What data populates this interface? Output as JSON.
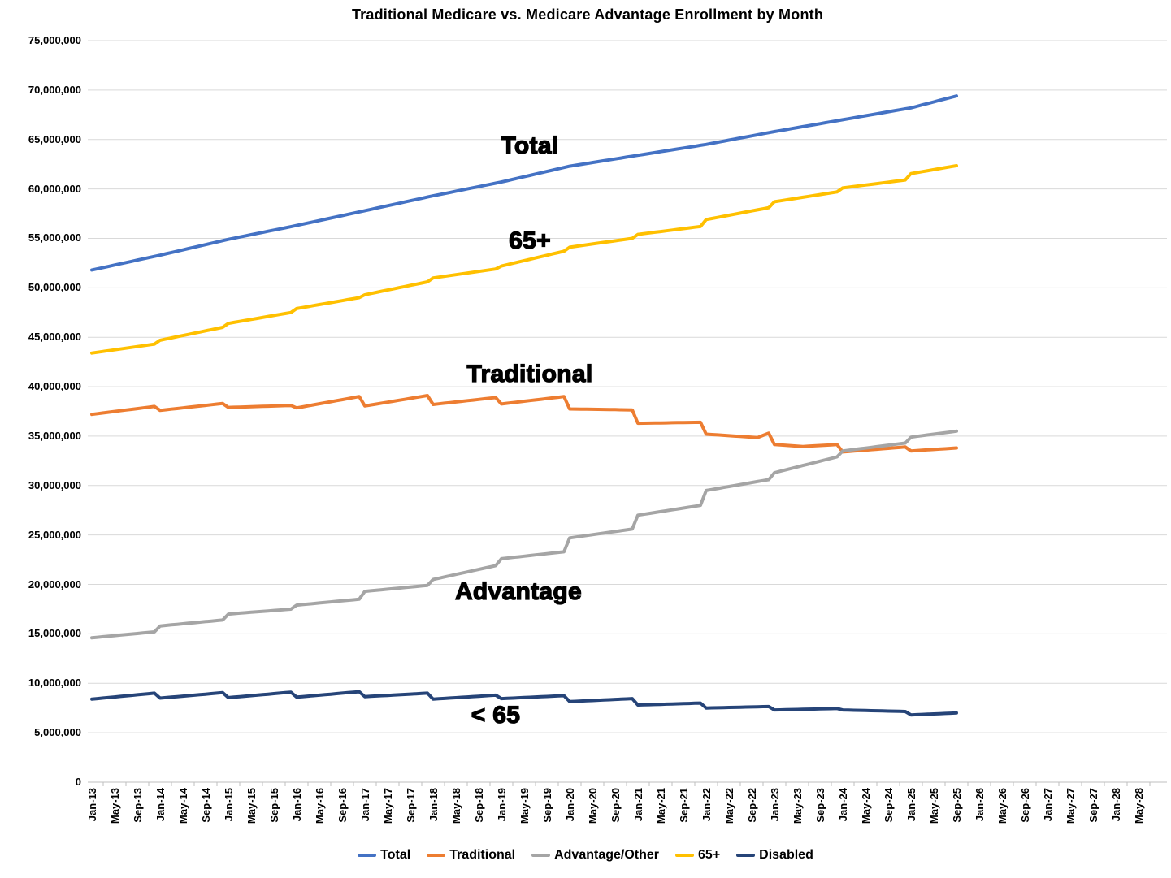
{
  "title": "Traditional Medicare vs. Medicare Advantage Enrollment by Month",
  "chart_data": {
    "type": "line",
    "title": "Traditional Medicare vs. Medicare Advantage Enrollment by Month",
    "xlabel": "",
    "ylabel": "",
    "x_unit": "month",
    "grid": "horizontal",
    "legend_position": "bottom",
    "ylim": [
      0,
      75000000
    ],
    "y_tick_interval": 5000000,
    "y_tick_labels": [
      "0",
      "5,000,000",
      "10,000,000",
      "15,000,000",
      "20,000,000",
      "25,000,000",
      "30,000,000",
      "35,000,000",
      "40,000,000",
      "45,000,000",
      "50,000,000",
      "55,000,000",
      "60,000,000",
      "65,000,000",
      "70,000,000",
      "75,000,000"
    ],
    "x_tick_labels": [
      "Jan-13",
      "May-13",
      "Sep-13",
      "Jan-14",
      "May-14",
      "Sep-14",
      "Jan-15",
      "May-15",
      "Sep-15",
      "Jan-16",
      "May-16",
      "Sep-16",
      "Jan-17",
      "May-17",
      "Sep-17",
      "Jan-18",
      "May-18",
      "Sep-18",
      "Jan-19",
      "May-19",
      "Sep-19",
      "Jan-20",
      "May-20",
      "Sep-20",
      "Jan-21",
      "May-21",
      "Sep-21",
      "Jan-22",
      "May-22",
      "Sep-22",
      "Jan-23",
      "May-23",
      "Sep-23",
      "Jan-24",
      "May-24",
      "Sep-24",
      "Jan-25",
      "May-25",
      "Sep-25",
      "Jan-26",
      "May-26",
      "Sep-26",
      "Jan-27",
      "May-27",
      "Sep-27",
      "Jan-28",
      "May-28"
    ],
    "x_axis_extends_to": "May-28",
    "data_start": "Jan-13",
    "data_end": "Sep-25",
    "interpolation": "monthly linear between anchor points; January steps reflect annual enrollment jumps",
    "values_unit": "enrollees (anchors in millions)",
    "series": [
      {
        "name": "Total",
        "color": "#4472C4",
        "anchors_millions": [
          [
            "Jan-13",
            51.8
          ],
          [
            "Jan-14",
            53.3
          ],
          [
            "Jan-15",
            54.9
          ],
          [
            "Jan-16",
            56.3
          ],
          [
            "Jan-17",
            57.8
          ],
          [
            "Jan-18",
            59.3
          ],
          [
            "Jan-19",
            60.7
          ],
          [
            "Jan-20",
            62.3
          ],
          [
            "Jan-21",
            63.4
          ],
          [
            "Jan-22",
            64.5
          ],
          [
            "Jan-23",
            65.8
          ],
          [
            "Jan-24",
            67.0
          ],
          [
            "Jan-25",
            68.2
          ],
          [
            "Sep-25",
            69.4
          ]
        ]
      },
      {
        "name": "Traditional",
        "color": "#ED7D31",
        "anchors_millions": [
          [
            "Jan-13",
            37.2
          ],
          [
            "Dec-13",
            38.0
          ],
          [
            "Jan-14",
            37.6
          ],
          [
            "Dec-14",
            38.3
          ],
          [
            "Jan-15",
            37.9
          ],
          [
            "Dec-15",
            38.1
          ],
          [
            "Jan-16",
            37.85
          ],
          [
            "Dec-16",
            39.0
          ],
          [
            "Jan-17",
            38.05
          ],
          [
            "Dec-17",
            39.1
          ],
          [
            "Jan-18",
            38.2
          ],
          [
            "Dec-18",
            38.9
          ],
          [
            "Jan-19",
            38.25
          ],
          [
            "Dec-19",
            39.0
          ],
          [
            "Jan-20",
            37.75
          ],
          [
            "Dec-20",
            37.65
          ],
          [
            "Jan-21",
            36.3
          ],
          [
            "Dec-21",
            36.4
          ],
          [
            "Jan-22",
            35.2
          ],
          [
            "Oct-22",
            34.85
          ],
          [
            "Dec-22",
            35.3
          ],
          [
            "Jan-23",
            34.15
          ],
          [
            "Jun-23",
            33.95
          ],
          [
            "Dec-23",
            34.15
          ],
          [
            "Jan-24",
            33.4
          ],
          [
            "Dec-24",
            33.9
          ],
          [
            "Jan-25",
            33.5
          ],
          [
            "Sep-25",
            33.8
          ]
        ]
      },
      {
        "name": "Advantage/Other",
        "color": "#A5A5A5",
        "anchors_millions": [
          [
            "Jan-13",
            14.6
          ],
          [
            "Dec-13",
            15.2
          ],
          [
            "Jan-14",
            15.8
          ],
          [
            "Dec-14",
            16.4
          ],
          [
            "Jan-15",
            17.0
          ],
          [
            "Dec-15",
            17.5
          ],
          [
            "Jan-16",
            17.9
          ],
          [
            "Dec-16",
            18.5
          ],
          [
            "Jan-17",
            19.3
          ],
          [
            "Dec-17",
            19.9
          ],
          [
            "Jan-18",
            20.5
          ],
          [
            "Dec-18",
            21.9
          ],
          [
            "Jan-19",
            22.6
          ],
          [
            "Dec-19",
            23.3
          ],
          [
            "Jan-20",
            24.7
          ],
          [
            "Dec-20",
            25.6
          ],
          [
            "Jan-21",
            27.0
          ],
          [
            "Dec-21",
            28.0
          ],
          [
            "Jan-22",
            29.5
          ],
          [
            "Dec-22",
            30.6
          ],
          [
            "Jan-23",
            31.3
          ],
          [
            "Dec-23",
            32.9
          ],
          [
            "Jan-24",
            33.5
          ],
          [
            "Dec-24",
            34.3
          ],
          [
            "Jan-25",
            34.9
          ],
          [
            "Sep-25",
            35.5
          ]
        ]
      },
      {
        "name": "65+",
        "color": "#FFC000",
        "anchors_millions": [
          [
            "Jan-13",
            43.4
          ],
          [
            "Dec-13",
            44.3
          ],
          [
            "Jan-14",
            44.7
          ],
          [
            "Dec-14",
            46.0
          ],
          [
            "Jan-15",
            46.4
          ],
          [
            "Dec-15",
            47.5
          ],
          [
            "Jan-16",
            47.9
          ],
          [
            "Dec-16",
            49.0
          ],
          [
            "Jan-17",
            49.3
          ],
          [
            "Dec-17",
            50.6
          ],
          [
            "Jan-18",
            51.0
          ],
          [
            "Dec-18",
            51.9
          ],
          [
            "Jan-19",
            52.2
          ],
          [
            "Dec-19",
            53.7
          ],
          [
            "Jan-20",
            54.1
          ],
          [
            "Dec-20",
            55.0
          ],
          [
            "Jan-21",
            55.4
          ],
          [
            "Dec-21",
            56.2
          ],
          [
            "Jan-22",
            56.9
          ],
          [
            "Dec-22",
            58.1
          ],
          [
            "Jan-23",
            58.7
          ],
          [
            "Dec-23",
            59.7
          ],
          [
            "Jan-24",
            60.1
          ],
          [
            "Dec-24",
            60.9
          ],
          [
            "Jan-25",
            61.55
          ],
          [
            "Sep-25",
            62.35
          ]
        ]
      },
      {
        "name": "Disabled",
        "color": "#264478",
        "anchors_millions": [
          [
            "Jan-13",
            8.4
          ],
          [
            "Dec-13",
            9.0
          ],
          [
            "Jan-14",
            8.5
          ],
          [
            "Dec-14",
            9.05
          ],
          [
            "Jan-15",
            8.55
          ],
          [
            "Dec-15",
            9.1
          ],
          [
            "Jan-16",
            8.6
          ],
          [
            "Dec-16",
            9.15
          ],
          [
            "Jan-17",
            8.65
          ],
          [
            "Dec-17",
            9.0
          ],
          [
            "Jan-18",
            8.4
          ],
          [
            "Dec-18",
            8.8
          ],
          [
            "Jan-19",
            8.45
          ],
          [
            "Dec-19",
            8.75
          ],
          [
            "Jan-20",
            8.15
          ],
          [
            "Dec-20",
            8.45
          ],
          [
            "Jan-21",
            7.8
          ],
          [
            "Dec-21",
            8.0
          ],
          [
            "Jan-22",
            7.5
          ],
          [
            "Dec-22",
            7.65
          ],
          [
            "Jan-23",
            7.3
          ],
          [
            "Dec-23",
            7.45
          ],
          [
            "Jan-24",
            7.3
          ],
          [
            "Dec-24",
            7.15
          ],
          [
            "Jan-25",
            6.8
          ],
          [
            "Sep-25",
            7.0
          ]
        ]
      }
    ],
    "annotations": [
      {
        "text": "Total",
        "month": "Jun-19",
        "value_millions": 64.0
      },
      {
        "text": "65+",
        "month": "Jun-19",
        "value_millions": 54.4
      },
      {
        "text": "Traditional",
        "month": "Jun-19",
        "value_millions": 40.9
      },
      {
        "text": "Advantage",
        "month": "Apr-19",
        "value_millions": 18.9
      },
      {
        "text": "< 65",
        "month": "Dec-18",
        "value_millions": 6.4
      }
    ],
    "legend_items": [
      "Total",
      "Traditional",
      "Advantage/Other",
      "65+",
      "Disabled"
    ]
  }
}
